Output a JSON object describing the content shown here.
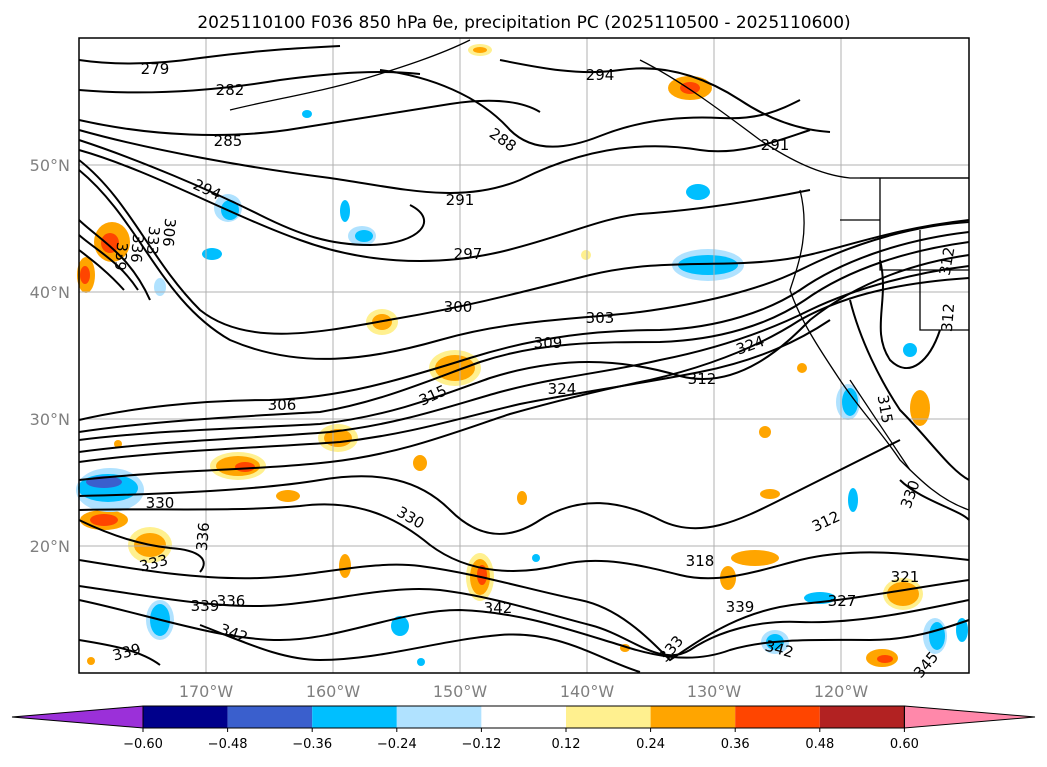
{
  "title": "2025110100 F036 850 hPa θe, precipitation PC (2025110500 - 2025110600)",
  "map": {
    "lat_labels": [
      "50°N",
      "40°N",
      "30°N",
      "20°N"
    ],
    "lon_labels": [
      "170°W",
      "160°W",
      "150°W",
      "140°W",
      "130°W",
      "120°W"
    ],
    "contour_labels": [
      "279",
      "282",
      "285",
      "288",
      "291",
      "291",
      "294",
      "294",
      "297",
      "300",
      "303",
      "306",
      "309",
      "312",
      "312",
      "315",
      "315",
      "318",
      "321",
      "324",
      "324",
      "327",
      "330",
      "330",
      "333",
      "333",
      "336",
      "336",
      "339",
      "339",
      "339",
      "342",
      "342",
      "342",
      "345",
      "306",
      "312",
      "312",
      "330",
      "333",
      "336",
      "339"
    ]
  },
  "colorbar": {
    "ticks": [
      "−0.60",
      "−0.48",
      "−0.36",
      "−0.24",
      "−0.12",
      "0.12",
      "0.24",
      "0.36",
      "0.48",
      "0.60"
    ],
    "colors": [
      "#9b30d9",
      "#00008b",
      "#3a5fcd",
      "#00bfff",
      "#b0e2ff",
      "#ffffff",
      "#fff08f",
      "#ffa500",
      "#ff4500",
      "#b22222",
      "#ff88aa"
    ]
  }
}
